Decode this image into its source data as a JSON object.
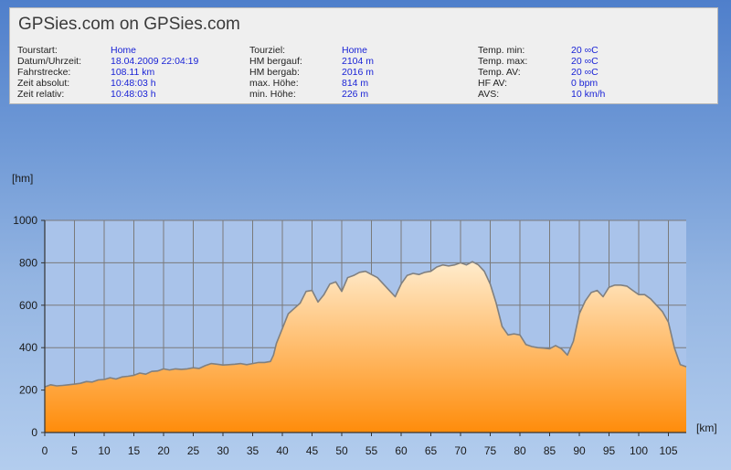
{
  "header": {
    "title": "GPSies.com on GPSies.com",
    "columns": [
      [
        {
          "label": "Tourstart:",
          "value": "Home"
        },
        {
          "label": "Datum/Uhrzeit:",
          "value": "18.04.2009 22:04:19"
        },
        {
          "label": "Fahrstrecke:",
          "value": "108.11 km"
        },
        {
          "label": "Zeit absolut:",
          "value": "10:48:03 h"
        },
        {
          "label": "Zeit relativ:",
          "value": "10:48:03 h"
        }
      ],
      [
        {
          "label": "Tourziel:",
          "value": "Home"
        },
        {
          "label": "HM bergauf:",
          "value": "2104 m"
        },
        {
          "label": "HM bergab:",
          "value": "2016 m"
        },
        {
          "label": "max. Höhe:",
          "value": "814 m"
        },
        {
          "label": "min. Höhe:",
          "value": "226 m"
        }
      ],
      [
        {
          "label": "Temp. min:",
          "value": "20 ∞C"
        },
        {
          "label": "Temp. max:",
          "value": "20 ∞C"
        },
        {
          "label": "Temp. AV:",
          "value": "20 ∞C"
        },
        {
          "label": "HF AV:",
          "value": "0 bpm"
        },
        {
          "label": "AVS:",
          "value": "10 km/h"
        }
      ]
    ]
  },
  "chart_data": {
    "type": "area",
    "title": "",
    "xlabel": "[km]",
    "ylabel": "[hm]",
    "xlim": [
      0,
      108
    ],
    "ylim": [
      0,
      1000
    ],
    "x_ticks": [
      "0",
      "5",
      "10",
      "15",
      "20",
      "25",
      "30",
      "35",
      "40",
      "45",
      "50",
      "55",
      "60",
      "65",
      "70",
      "75",
      "80",
      "85",
      "90",
      "95",
      "100",
      "105"
    ],
    "y_ticks": [
      "0",
      "200",
      "400",
      "600",
      "800",
      "1000"
    ],
    "grid": true,
    "colors": {
      "fill_top": "#ffeccd",
      "fill_bottom": "#ff8c0a",
      "line": "#808080",
      "plot_bg": "#a9c3ea",
      "grid": "#7a7a7a"
    },
    "series": [
      {
        "x": [
          0,
          1,
          2,
          3,
          4,
          5,
          6,
          7,
          8,
          9,
          10,
          11,
          12,
          13,
          14,
          15,
          16,
          17,
          18,
          19,
          20,
          21,
          22,
          23,
          24,
          25,
          26,
          27,
          28,
          29,
          30,
          31,
          32,
          33,
          34,
          35,
          36,
          37,
          38,
          38.5,
          39,
          40,
          41,
          42,
          43,
          44,
          45,
          46,
          47,
          48,
          49,
          50,
          51,
          52,
          53,
          54,
          55,
          56,
          57,
          58,
          59,
          60,
          61,
          62,
          63,
          64,
          65,
          66,
          67,
          68,
          69,
          70,
          71,
          72,
          73,
          74,
          75,
          76,
          77,
          78,
          79,
          80,
          81,
          82,
          83,
          84,
          85,
          86,
          87,
          88,
          89,
          90,
          91,
          92,
          93,
          94,
          95,
          96,
          97,
          98,
          99,
          100,
          101,
          102,
          103,
          104,
          105,
          106,
          107,
          108
        ],
        "y": [
          215,
          225,
          220,
          222,
          225,
          228,
          232,
          240,
          238,
          248,
          250,
          258,
          252,
          262,
          265,
          270,
          280,
          275,
          288,
          290,
          300,
          295,
          300,
          298,
          300,
          305,
          302,
          315,
          325,
          322,
          318,
          320,
          322,
          325,
          320,
          325,
          330,
          330,
          335,
          365,
          420,
          490,
          560,
          585,
          610,
          665,
          670,
          615,
          650,
          700,
          710,
          665,
          730,
          740,
          755,
          760,
          745,
          730,
          700,
          670,
          640,
          700,
          740,
          750,
          745,
          755,
          760,
          780,
          790,
          785,
          790,
          800,
          790,
          805,
          790,
          760,
          700,
          610,
          500,
          460,
          465,
          460,
          415,
          405,
          400,
          398,
          395,
          410,
          395,
          365,
          430,
          560,
          620,
          660,
          670,
          640,
          685,
          695,
          695,
          690,
          670,
          650,
          650,
          630,
          600,
          570,
          520,
          400,
          320,
          310
        ]
      }
    ]
  }
}
